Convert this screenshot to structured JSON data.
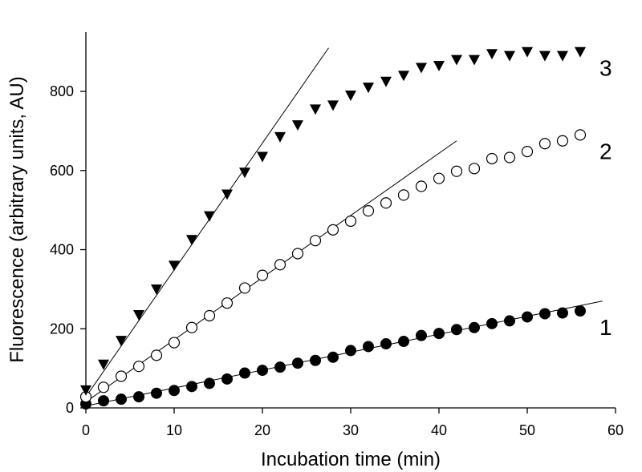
{
  "chart_data": {
    "type": "scatter",
    "xlabel": "Incubation time (min)",
    "ylabel": "Fluorescence (arbitrary units, AU)",
    "xlim": [
      0,
      60
    ],
    "ylim": [
      0,
      950
    ],
    "xticks": [
      0,
      10,
      20,
      30,
      40,
      50,
      60
    ],
    "yticks": [
      0,
      200,
      400,
      600,
      800
    ],
    "grid": false,
    "series": [
      {
        "name": "1",
        "marker": "filled-circle",
        "x": [
          0,
          2,
          4,
          6,
          8,
          10,
          12,
          14,
          16,
          18,
          20,
          22,
          24,
          26,
          28,
          30,
          32,
          34,
          36,
          38,
          40,
          42,
          44,
          46,
          48,
          50,
          52,
          54,
          56
        ],
        "values": [
          10,
          18,
          22,
          28,
          37,
          44,
          54,
          62,
          73,
          88,
          95,
          103,
          113,
          120,
          128,
          145,
          155,
          162,
          168,
          183,
          188,
          198,
          203,
          213,
          220,
          230,
          238,
          240,
          245
        ],
        "fit": [
          [
            0,
            5
          ],
          [
            58.5,
            270
          ]
        ]
      },
      {
        "name": "2",
        "marker": "open-circle",
        "x": [
          0,
          2,
          4,
          6,
          8,
          10,
          12,
          14,
          16,
          18,
          20,
          22,
          24,
          26,
          28,
          30,
          32,
          34,
          36,
          38,
          40,
          42,
          44,
          46,
          48,
          50,
          52,
          54,
          56
        ],
        "values": [
          28,
          52,
          80,
          105,
          133,
          165,
          203,
          233,
          265,
          303,
          335,
          362,
          390,
          423,
          450,
          472,
          498,
          518,
          538,
          560,
          580,
          598,
          605,
          630,
          633,
          648,
          668,
          675,
          690
        ],
        "fit": [
          [
            0,
            15
          ],
          [
            42,
            675
          ]
        ]
      },
      {
        "name": "3",
        "marker": "filled-triangle-down",
        "x": [
          0,
          2,
          4,
          6,
          8,
          10,
          12,
          14,
          16,
          18,
          20,
          22,
          24,
          26,
          28,
          30,
          32,
          34,
          36,
          38,
          40,
          42,
          44,
          46,
          48,
          50,
          52,
          54,
          56
        ],
        "values": [
          45,
          110,
          170,
          235,
          300,
          360,
          425,
          485,
          540,
          595,
          635,
          685,
          715,
          755,
          765,
          790,
          810,
          825,
          840,
          860,
          865,
          880,
          880,
          895,
          890,
          900,
          890,
          890,
          900
        ],
        "fit": [
          [
            0,
            28
          ],
          [
            27.5,
            910
          ]
        ]
      }
    ]
  }
}
